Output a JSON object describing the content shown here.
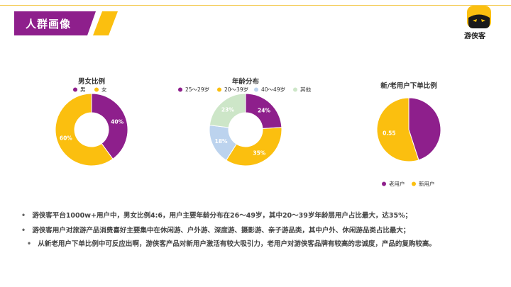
{
  "header": {
    "title": "人群画像",
    "logo_text": "游侠客"
  },
  "chart_data": [
    {
      "type": "pie",
      "variant": "donut",
      "title": "男女比例",
      "legend": [
        "男",
        "女"
      ],
      "legend_placement": "top",
      "values": [
        40,
        60
      ],
      "labels": [
        "40%",
        "60%"
      ],
      "colors": [
        "#8e1f8c",
        "#fbbf0f"
      ]
    },
    {
      "type": "pie",
      "variant": "donut",
      "title": "年龄分布",
      "legend": [
        "25～29岁",
        "20～39岁",
        "40～49岁",
        "其他"
      ],
      "legend_placement": "top",
      "values": [
        24,
        35,
        18,
        23
      ],
      "labels": [
        "24%",
        "35%",
        "18%",
        "23%"
      ],
      "colors": [
        "#8e1f8c",
        "#fbbf0f",
        "#bcd3ee",
        "#cde6c8"
      ]
    },
    {
      "type": "pie",
      "title": "新/老用户下单比例",
      "legend": [
        "老用户",
        "新用户"
      ],
      "legend_placement": "bottom",
      "values": [
        0.45,
        0.55
      ],
      "labels": [
        "",
        "0.55"
      ],
      "colors": [
        "#8e1f8c",
        "#fbbf0f"
      ]
    }
  ],
  "bullets": [
    "游侠客平台1000w+用户中，男女比例4:6，用户主要年龄分布在26～49岁，其中20～39岁年龄层用户占比最大，达35%；",
    "游侠客用户对旅游产品消费喜好主要集中在休闲游、户外游、深度游、摄影游、亲子游品类，其中户外、休闲游品类占比最大；",
    "从新老用户下单比例中可反应出啊，游侠客产品对新用户激活有较大吸引力，老用户对游侠客品牌有较高的忠诚度，产品的复购较高。"
  ],
  "bullet_symbol": "•"
}
